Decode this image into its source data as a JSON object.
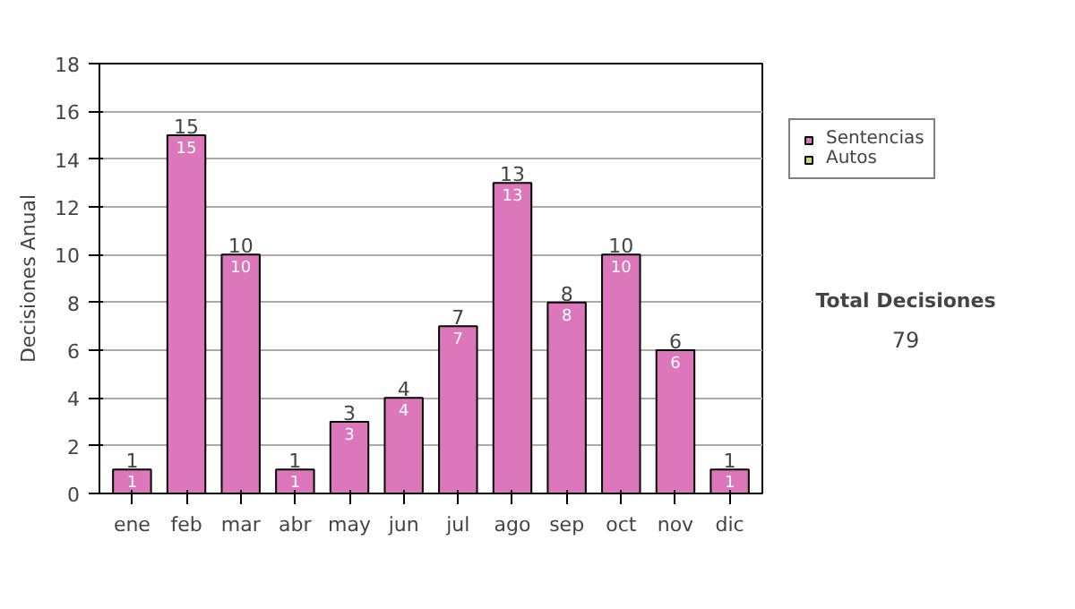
{
  "chart_data": {
    "type": "bar",
    "ylabel": "Decisiones Anual",
    "categories": [
      "ene",
      "feb",
      "mar",
      "abr",
      "may",
      "jun",
      "jul",
      "ago",
      "sep",
      "oct",
      "nov",
      "dic"
    ],
    "series": [
      {
        "name": "Sentencias",
        "color": "#dd77bb",
        "values": [
          1,
          15,
          10,
          1,
          3,
          4,
          7,
          13,
          8,
          10,
          6,
          1
        ]
      },
      {
        "name": "Autos",
        "color": "#ccdd77",
        "values": [
          null,
          null,
          null,
          null,
          null,
          null,
          null,
          null,
          null,
          null,
          null,
          null
        ]
      }
    ],
    "stacked": true,
    "data_labels": true,
    "totals": [
      "1",
      "15",
      "10",
      "1",
      "3",
      "4",
      "7",
      "13",
      "8",
      "10",
      "6",
      "1"
    ],
    "ylim": [
      0,
      18
    ],
    "yticks": [
      0,
      2,
      4,
      6,
      8,
      10,
      12,
      14,
      16,
      18
    ],
    "grid": "y",
    "legend": "right",
    "annotations": [
      "Total Decisiones",
      "79"
    ]
  }
}
